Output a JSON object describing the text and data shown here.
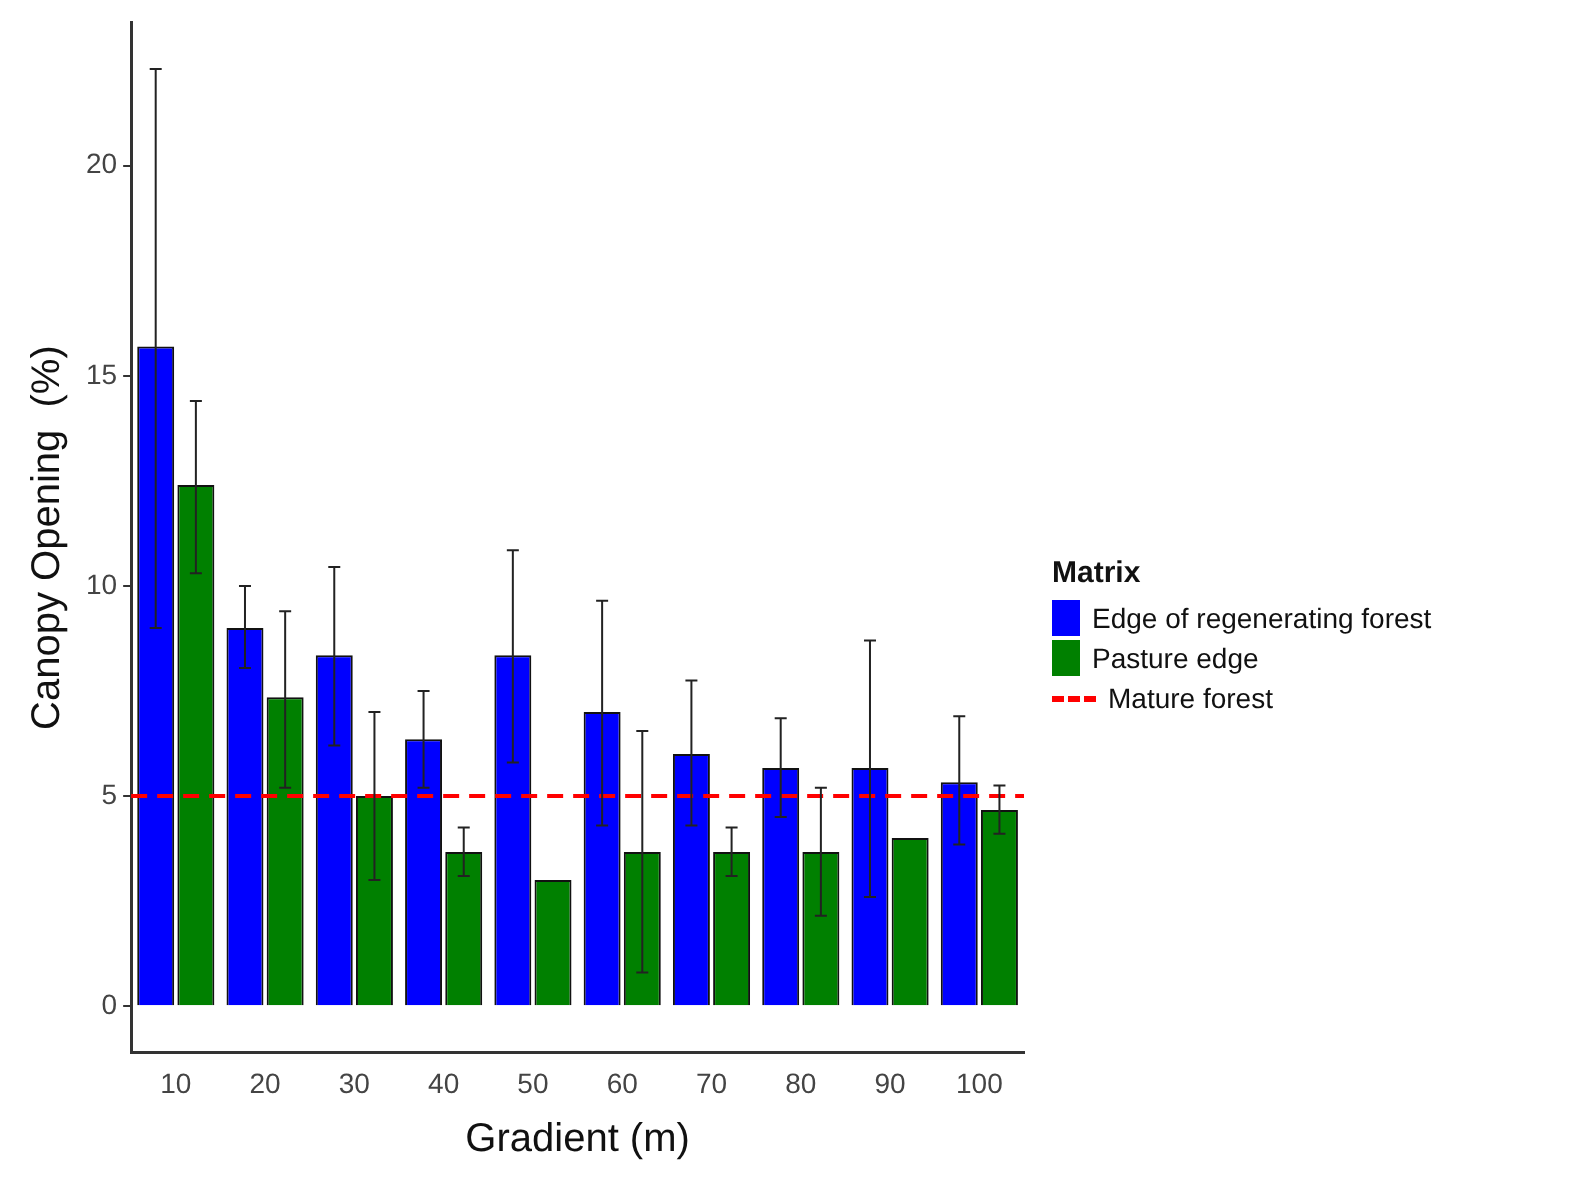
{
  "chart_data": {
    "type": "bar",
    "xlabel": "Gradient (m)",
    "ylabel": "Canopy Opening  (%)",
    "legend_title": "Matrix",
    "legend": "right",
    "grid": false,
    "categories": [
      "10",
      "20",
      "30",
      "40",
      "50",
      "60",
      "70",
      "80",
      "90",
      "100"
    ],
    "ylim": [
      -1.1,
      23.4
    ],
    "yticks": [
      0,
      5,
      10,
      15,
      20
    ],
    "series": [
      {
        "name": "Edge of regenerating forest",
        "color": "#0000ff",
        "values": [
          15.7,
          9.0,
          8.35,
          6.35,
          8.35,
          7.0,
          6.0,
          5.67,
          5.67,
          5.33
        ],
        "errors": [
          [
            9.0,
            22.3
          ],
          [
            8.05,
            10.0
          ],
          [
            6.2,
            10.45
          ],
          [
            5.2,
            7.5
          ],
          [
            5.8,
            10.85
          ],
          [
            4.3,
            9.65
          ],
          [
            4.3,
            7.75
          ],
          [
            4.5,
            6.85
          ],
          [
            2.6,
            8.7
          ],
          [
            3.85,
            6.9
          ]
        ]
      },
      {
        "name": "Pasture edge",
        "color": "#008000",
        "values": [
          12.4,
          7.35,
          5.0,
          3.67,
          3.0,
          3.67,
          3.67,
          3.67,
          4.0,
          4.67
        ],
        "errors": [
          [
            10.3,
            14.4
          ],
          [
            5.2,
            9.4
          ],
          [
            3.0,
            7.0
          ],
          [
            3.1,
            4.25
          ],
          null,
          [
            0.8,
            6.55
          ],
          [
            3.1,
            4.25
          ],
          [
            2.15,
            5.2
          ],
          null,
          [
            4.1,
            5.25
          ]
        ]
      }
    ],
    "ref_lines": [
      {
        "axis": "y",
        "value": 5,
        "label": "Mature forest",
        "color": "#ff0000",
        "line_style": "dashed"
      }
    ]
  }
}
